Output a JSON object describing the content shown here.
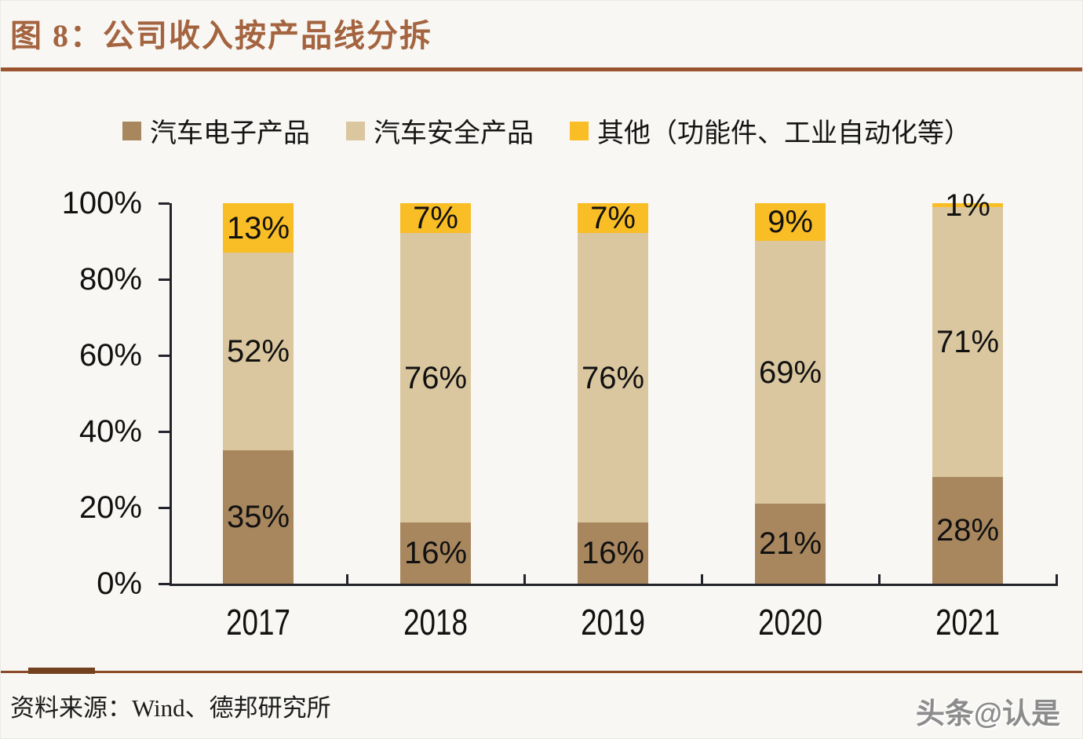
{
  "header": {
    "title": "图 8：公司收入按产品线分拆",
    "title_color": "#a4643f",
    "rule_color": "#99532f"
  },
  "chart_data": {
    "type": "bar",
    "stacked": true,
    "percent_stacked": true,
    "title": "图 8：公司收入按产品线分拆",
    "categories": [
      "2017",
      "2018",
      "2019",
      "2020",
      "2021"
    ],
    "series": [
      {
        "name": "汽车电子产品",
        "color": "#a8875f",
        "values": [
          35,
          16,
          16,
          21,
          28
        ]
      },
      {
        "name": "汽车安全产品",
        "color": "#dbc79f",
        "values": [
          52,
          76,
          76,
          69,
          71
        ]
      },
      {
        "name": "其他（功能件、工业自动化等）",
        "color": "#f9bd25",
        "values": [
          13,
          7,
          7,
          9,
          1
        ]
      }
    ],
    "data_label_suffix": "%",
    "y_ticks": [
      "0%",
      "20%",
      "40%",
      "60%",
      "80%",
      "100%"
    ],
    "ylim": [
      0,
      100
    ],
    "xlabel": "",
    "ylabel": "",
    "grid": false,
    "legend_position": "top",
    "axis_color": "#23232b",
    "label_color": "#111111"
  },
  "footer": {
    "source": "资料来源：Wind、德邦研究所",
    "watermark": "头条@认是",
    "rule_color": "#8a4a28"
  }
}
